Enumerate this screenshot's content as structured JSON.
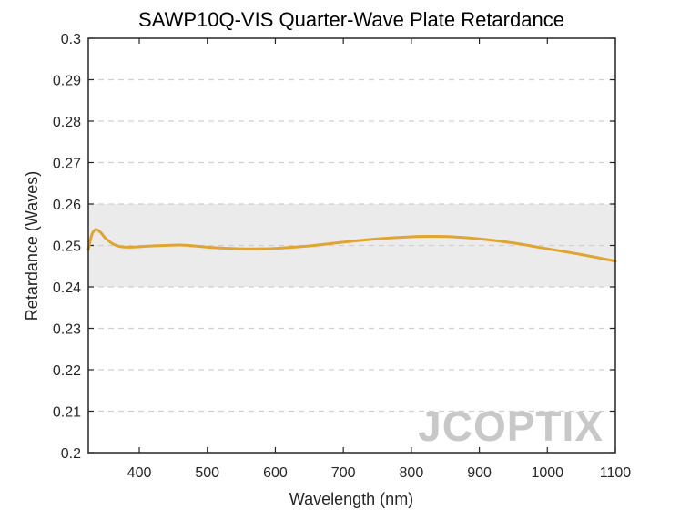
{
  "chart_data": {
    "type": "line",
    "title": "SAWP10Q-VIS Quarter-Wave Plate Retardance",
    "xlabel": "Wavelength (nm)",
    "ylabel": "Retardance (Waves)",
    "xlim": [
      325,
      1100
    ],
    "ylim": [
      0.2,
      0.3
    ],
    "xticks": [
      400,
      500,
      600,
      700,
      800,
      900,
      1000,
      1100
    ],
    "yticks": [
      0.2,
      0.21,
      0.22,
      0.23,
      0.24,
      0.25,
      0.26,
      0.27,
      0.28,
      0.29,
      0.3
    ],
    "ytick_labels": [
      "0.2",
      "0.21",
      "0.22",
      "0.23",
      "0.24",
      "0.25",
      "0.26",
      "0.27",
      "0.28",
      "0.29",
      "0.3"
    ],
    "grid": "horizontal-dashed",
    "tolerance_band": [
      0.24,
      0.26
    ],
    "series": [
      {
        "x": [
          325,
          330,
          335,
          340,
          345,
          350,
          360,
          370,
          380,
          390,
          400,
          420,
          440,
          460,
          480,
          500,
          520,
          550,
          580,
          600,
          650,
          700,
          750,
          800,
          830,
          860,
          900,
          950,
          1000,
          1050,
          1100
        ],
        "y": [
          0.249,
          0.2525,
          0.2538,
          0.2536,
          0.2528,
          0.2518,
          0.2505,
          0.2498,
          0.2496,
          0.2496,
          0.2497,
          0.2499,
          0.25,
          0.2501,
          0.2499,
          0.2496,
          0.2494,
          0.2492,
          0.2492,
          0.2493,
          0.2499,
          0.2508,
          0.2516,
          0.2521,
          0.2522,
          0.2521,
          0.2516,
          0.2506,
          0.2492,
          0.2478,
          0.2462
        ]
      }
    ]
  },
  "watermark": "JCOPTIX",
  "colors": {
    "line": "#E0A530",
    "band": "#EBEBEB",
    "grid": "#D0D0D0",
    "axis": "#262626"
  }
}
